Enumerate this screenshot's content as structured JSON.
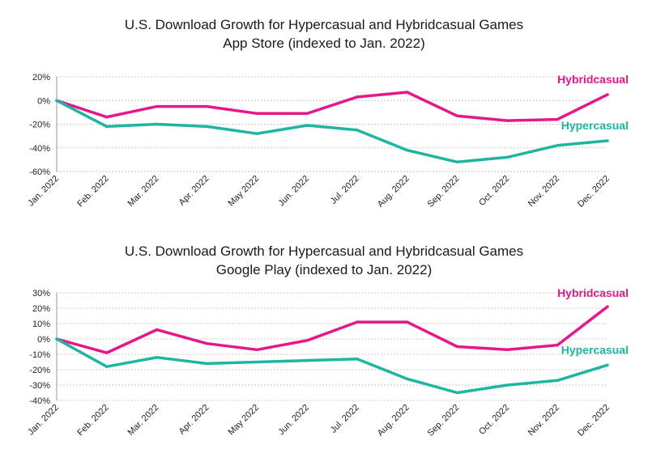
{
  "colors": {
    "hybridcasual": "#e5188b",
    "hypercasual": "#1fb5a0",
    "grid": "#c8c8c8",
    "axis": "#999999"
  },
  "chart_data": [
    {
      "type": "line",
      "title": "U.S. Download Growth for Hypercasual and Hybridcasual Games",
      "subtitle": "App Store (indexed to Jan. 2022)",
      "categories": [
        "Jan. 2022",
        "Feb. 2022",
        "Mar. 2022",
        "Apr. 2022",
        "May 2022",
        "Jun. 2022",
        "Jul. 2022",
        "Aug. 2022",
        "Sep. 2022",
        "Oct. 2022",
        "Nov. 2022",
        "Dec. 2022"
      ],
      "ylim": [
        -60,
        20
      ],
      "yticks": [
        20,
        0,
        -20,
        -40,
        -60
      ],
      "ytick_labels": [
        "20%",
        "0%",
        "-20%",
        "-40%",
        "-60%"
      ],
      "grid": true,
      "series": [
        {
          "name": "Hybridcasual",
          "color": "#e5188b",
          "values": [
            0,
            -14,
            -5,
            -5,
            -11,
            -11,
            3,
            7,
            -13,
            -17,
            -16,
            5
          ]
        },
        {
          "name": "Hypercasual",
          "color": "#1fb5a0",
          "values": [
            0,
            -22,
            -20,
            -22,
            -28,
            -21,
            -25,
            -42,
            -52,
            -48,
            -38,
            -34
          ]
        }
      ]
    },
    {
      "type": "line",
      "title": "U.S. Download Growth for Hypercasual and Hybridcasual Games",
      "subtitle": "Google Play (indexed to Jan. 2022)",
      "categories": [
        "Jan. 2022",
        "Feb. 2022",
        "Mar. 2022",
        "Apr. 2022",
        "May 2022",
        "Jun. 2022",
        "Jul. 2022",
        "Aug. 2022",
        "Sep. 2022",
        "Oct. 2022",
        "Nov. 2022",
        "Dec. 2022"
      ],
      "ylim": [
        -40,
        30
      ],
      "yticks": [
        30,
        20,
        10,
        0,
        -10,
        -20,
        -30,
        -40
      ],
      "ytick_labels": [
        "30%",
        "20%",
        "10%",
        "0%",
        "-10%",
        "-20%",
        "-30%",
        "-40%"
      ],
      "grid": true,
      "series": [
        {
          "name": "Hybridcasual",
          "color": "#e5188b",
          "values": [
            0,
            -9,
            6,
            -3,
            -7,
            -1,
            11,
            11,
            -5,
            -7,
            -4,
            21
          ]
        },
        {
          "name": "Hypercasual",
          "color": "#1fb5a0",
          "values": [
            0,
            -18,
            -12,
            -16,
            -15,
            -14,
            -13,
            -26,
            -35,
            -30,
            -27,
            -17
          ]
        }
      ]
    }
  ]
}
